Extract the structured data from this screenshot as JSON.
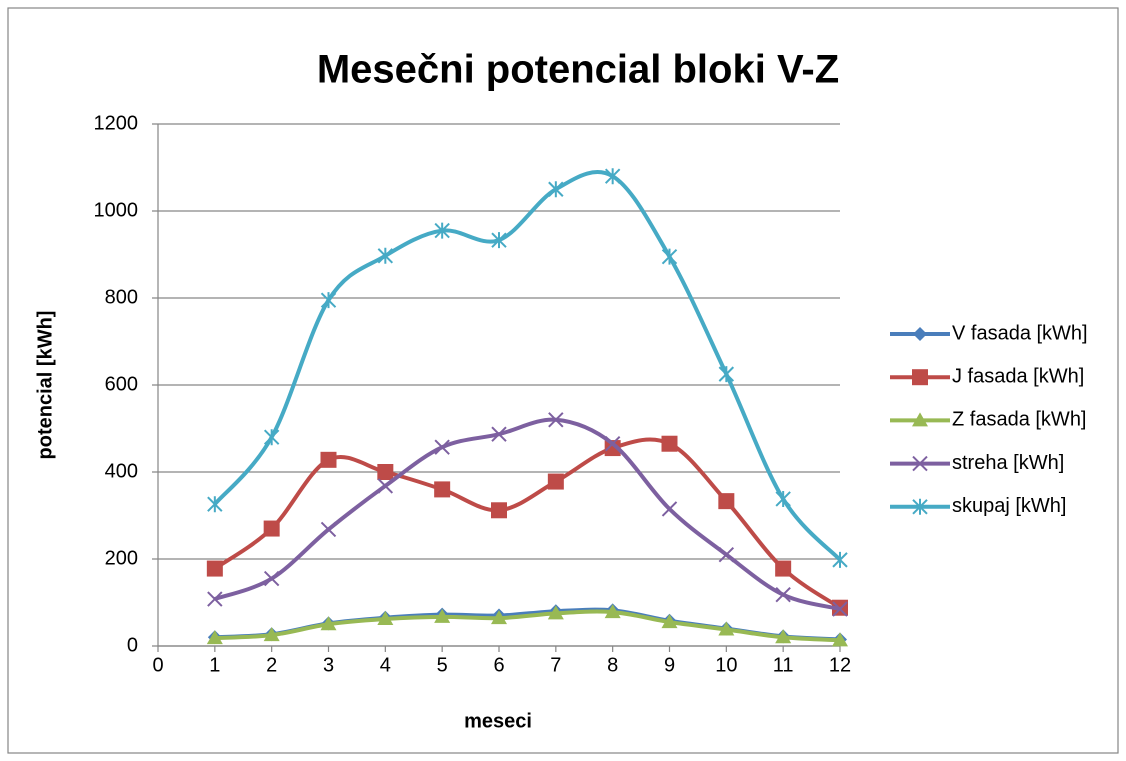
{
  "chart_data": {
    "type": "line",
    "title": "Mesečni potencial bloki V-Z",
    "x_label": "meseci",
    "y_label": "potencial [kWh]",
    "x": [
      1,
      2,
      3,
      4,
      5,
      6,
      7,
      8,
      9,
      10,
      11,
      12
    ],
    "xlim": [
      0,
      12
    ],
    "xticks": [
      0,
      1,
      2,
      3,
      4,
      5,
      6,
      7,
      8,
      9,
      10,
      11,
      12
    ],
    "ylim": [
      0,
      1200
    ],
    "yticks": [
      0,
      200,
      400,
      600,
      800,
      1000,
      1200
    ],
    "grid": true,
    "legend": "right",
    "smooth": true,
    "series": [
      {
        "name": "V fasada [kWh]",
        "color": "#4a7ebb",
        "marker": "diamond",
        "values": [
          20,
          27,
          52,
          65,
          72,
          70,
          80,
          82,
          58,
          40,
          22,
          15
        ]
      },
      {
        "name": "J fasada [kWh]",
        "color": "#be4b48",
        "marker": "square",
        "values": [
          178,
          270,
          428,
          400,
          360,
          312,
          378,
          455,
          465,
          333,
          178,
          88
        ]
      },
      {
        "name": "Z fasada [kWh]",
        "color": "#98b954",
        "marker": "triangle",
        "values": [
          18,
          25,
          50,
          62,
          67,
          64,
          75,
          78,
          55,
          38,
          20,
          13
        ]
      },
      {
        "name": "streha [kWh]",
        "color": "#7d60a0",
        "marker": "x",
        "values": [
          108,
          155,
          268,
          368,
          457,
          487,
          520,
          465,
          315,
          210,
          118,
          85
        ]
      },
      {
        "name": "skupaj [kWh]",
        "color": "#46aac5",
        "marker": "star",
        "values": [
          326,
          480,
          795,
          897,
          955,
          933,
          1050,
          1080,
          895,
          625,
          338,
          198
        ]
      }
    ]
  }
}
